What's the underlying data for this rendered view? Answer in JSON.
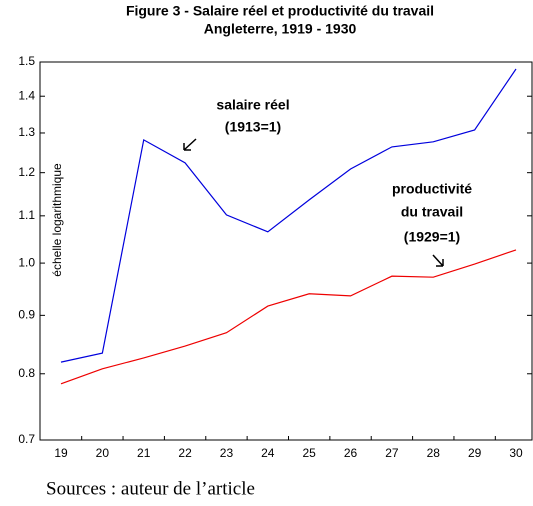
{
  "chart_data": {
    "type": "line",
    "title": [
      "Figure 3 - Salaire réel et productivité du travail",
      "Angleterre, 1919 - 1930"
    ],
    "y_label": "échelle logarithmique",
    "categories": [
      "19",
      "20",
      "21",
      "22",
      "23",
      "24",
      "25",
      "26",
      "27",
      "28",
      "29",
      "30"
    ],
    "series": [
      {
        "color": "#0000dd",
        "values": [
          0.819,
          0.834,
          1.282,
          1.224,
          1.102,
          1.065,
          1.136,
          1.209,
          1.264,
          1.277,
          1.308,
          1.479
        ]
      },
      {
        "color": "#ee0000",
        "values": [
          0.784,
          0.808,
          0.826,
          0.846,
          0.869,
          0.917,
          0.94,
          0.936,
          0.974,
          0.972,
          0.998,
          1.027
        ]
      }
    ],
    "ylim": [
      0.7,
      1.5
    ],
    "yticks": [
      0.7,
      0.8,
      0.9,
      {
        "value": 1,
        "label": "1.0"
      },
      1.1,
      1.2,
      1.3,
      1.4,
      1.5
    ],
    "log_scale": true,
    "annotations": [
      [
        "salaire réel",
        "(1913=1)"
      ],
      [
        "productivité",
        "du travail",
        "(1929=1)"
      ]
    ],
    "source": "Sources : auteur de l’article"
  }
}
